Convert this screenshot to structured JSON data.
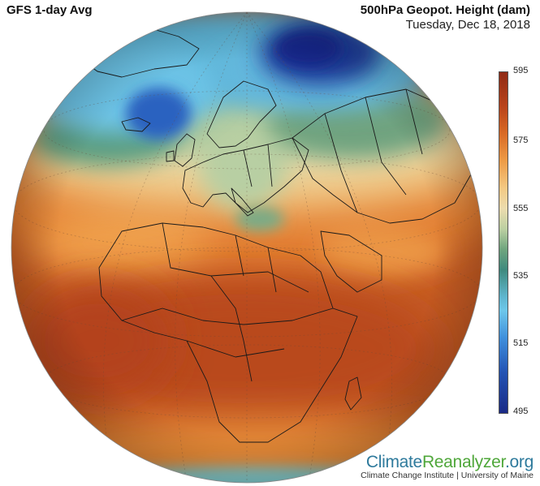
{
  "header": {
    "model_label": "GFS 1-day Avg",
    "variable": "500hPa Geopot. Height (dam)",
    "date": "Tuesday, Dec 18, 2018"
  },
  "legend": {
    "ticks": [
      "595",
      "575",
      "555",
      "535",
      "515",
      "495"
    ],
    "tick_values": [
      595,
      575,
      555,
      535,
      515,
      495
    ],
    "min": 495,
    "max": 595,
    "colors": {
      "high": "#8f2a15",
      "upper_mid": "#ee9b46",
      "mid": "#ecdcae",
      "lower_mid": "#3f8a7e",
      "low_light": "#6dc7ea",
      "low": "#1a2a86"
    }
  },
  "brand": {
    "logo_part1": "Climate",
    "logo_part2": "Reanalyzer",
    "logo_part3": ".org",
    "subtitle": "Climate Change Institute | University of Maine"
  }
}
